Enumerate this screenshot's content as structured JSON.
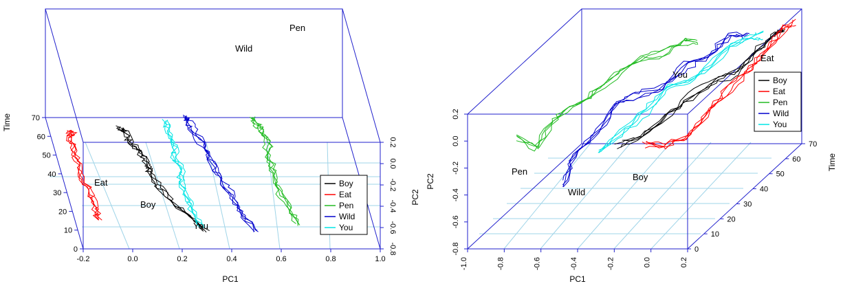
{
  "colors": {
    "box": "#1f1fcc",
    "grid": "#9fd4e8",
    "Boy": "#000000",
    "Eat": "#ff0000",
    "Pen": "#22bb22",
    "Wild": "#0000cc",
    "You": "#00e5e5"
  },
  "chart_data": [
    {
      "type": "line",
      "subtype": "3d-scatterplot-trajectories",
      "title": "",
      "xlabel": "PC1",
      "ylabel": "PC2",
      "zlabel": "Time",
      "x_ticks": [
        "-0.2",
        "0.0",
        "0.2",
        "0.4",
        "0.6",
        "0.8",
        "1.0"
      ],
      "y_ticks": [
        "-0.8",
        "-0.6",
        "-0.4",
        "-0.2",
        "0.0",
        "0.2"
      ],
      "z_ticks": [
        "0",
        "10",
        "20",
        "30",
        "40",
        "50",
        "60",
        "70"
      ],
      "xlim": [
        -0.2,
        1.0
      ],
      "ylim": [
        -0.8,
        0.2
      ],
      "zlim": [
        0,
        70
      ],
      "legend": {
        "placement": "bottom-right",
        "entries": [
          "Boy",
          "Eat",
          "Pen",
          "Wild",
          "You"
        ]
      },
      "word_labels": [
        {
          "text": "Eat",
          "series": "Eat"
        },
        {
          "text": "Boy",
          "series": "Boy"
        },
        {
          "text": "You",
          "series": "You"
        },
        {
          "text": "Wild",
          "series": "Wild"
        },
        {
          "text": "Pen",
          "series": "Pen"
        }
      ],
      "series": [
        {
          "name": "Eat",
          "points": [
            [
              -0.05,
              -0.05,
              5
            ],
            [
              -0.06,
              -0.1,
              15
            ],
            [
              -0.08,
              -0.15,
              25
            ],
            [
              -0.1,
              -0.2,
              35
            ],
            [
              -0.12,
              -0.25,
              45
            ],
            [
              -0.13,
              -0.3,
              55
            ],
            [
              -0.15,
              -0.35,
              62
            ],
            [
              -0.15,
              -0.45,
              66
            ],
            [
              -0.17,
              -0.55,
              70
            ]
          ]
        },
        {
          "name": "Boy",
          "points": [
            [
              0.35,
              -0.35,
              3
            ],
            [
              0.3,
              -0.2,
              10
            ],
            [
              0.25,
              -0.1,
              18
            ],
            [
              0.22,
              0.0,
              25
            ],
            [
              0.2,
              0.05,
              33
            ],
            [
              0.18,
              0.0,
              40
            ],
            [
              0.15,
              -0.1,
              48
            ],
            [
              0.12,
              -0.15,
              55
            ],
            [
              0.1,
              -0.2,
              62
            ],
            [
              0.06,
              -0.3,
              68
            ]
          ]
        },
        {
          "name": "You",
          "points": [
            [
              0.35,
              -0.2,
              3
            ],
            [
              0.34,
              -0.05,
              10
            ],
            [
              0.33,
              0.05,
              18
            ],
            [
              0.32,
              0.1,
              26
            ],
            [
              0.32,
              0.08,
              34
            ],
            [
              0.3,
              0.0,
              42
            ],
            [
              0.3,
              -0.05,
              50
            ],
            [
              0.28,
              -0.1,
              58
            ],
            [
              0.27,
              -0.15,
              65
            ],
            [
              0.26,
              -0.2,
              70
            ]
          ]
        },
        {
          "name": "Wild",
          "points": [
            [
              0.55,
              -0.35,
              3
            ],
            [
              0.52,
              -0.2,
              10
            ],
            [
              0.5,
              -0.15,
              18
            ],
            [
              0.48,
              -0.1,
              26
            ],
            [
              0.46,
              -0.05,
              34
            ],
            [
              0.44,
              0.0,
              42
            ],
            [
              0.42,
              0.05,
              50
            ],
            [
              0.4,
              0.1,
              58
            ],
            [
              0.38,
              0.05,
              65
            ],
            [
              0.36,
              0.0,
              70
            ]
          ]
        },
        {
          "name": "Pen",
          "points": [
            [
              0.75,
              -0.1,
              3
            ],
            [
              0.73,
              0.0,
              12
            ],
            [
              0.71,
              0.05,
              22
            ],
            [
              0.7,
              0.1,
              32
            ],
            [
              0.69,
              0.1,
              42
            ],
            [
              0.68,
              0.05,
              52
            ],
            [
              0.66,
              0.0,
              60
            ],
            [
              0.64,
              -0.05,
              66
            ],
            [
              0.62,
              -0.1,
              70
            ]
          ]
        }
      ]
    },
    {
      "type": "line",
      "subtype": "3d-scatterplot-trajectories",
      "title": "",
      "xlabel": "PC1",
      "ylabel": "PC2",
      "zlabel": "Time",
      "x_ticks": [
        "-1.0",
        "-0.8",
        "-0.6",
        "-0.4",
        "-0.2",
        "0.0",
        "0.2"
      ],
      "y_ticks": [
        "-0.8",
        "-0.6",
        "-0.4",
        "-0.2",
        "0.0",
        "0.2"
      ],
      "z_ticks": [
        "0",
        "10",
        "20",
        "30",
        "40",
        "50",
        "60",
        "70"
      ],
      "xlim": [
        -1.0,
        0.2
      ],
      "ylim": [
        -0.8,
        0.2
      ],
      "zlim": [
        0,
        70
      ],
      "legend": {
        "placement": "top-right",
        "entries": [
          "Boy",
          "Eat",
          "Pen",
          "Wild",
          "You"
        ]
      },
      "word_labels": [
        {
          "text": "Eat",
          "series": "Eat"
        },
        {
          "text": "You",
          "series": "You"
        },
        {
          "text": "Pen",
          "series": "Pen"
        },
        {
          "text": "Wild",
          "series": "Wild"
        },
        {
          "text": "Boy",
          "series": "Boy"
        }
      ],
      "series": [
        {
          "name": "Pen",
          "points": [
            [
              -0.75,
              0.0,
              2
            ],
            [
              -0.7,
              -0.15,
              8
            ],
            [
              -0.68,
              -0.05,
              15
            ],
            [
              -0.65,
              0.0,
              22
            ],
            [
              -0.6,
              0.0,
              30
            ],
            [
              -0.55,
              0.05,
              40
            ],
            [
              -0.5,
              0.05,
              50
            ],
            [
              -0.45,
              0.0,
              58
            ],
            [
              -0.4,
              0.0,
              66
            ],
            [
              -0.38,
              -0.05,
              70
            ]
          ]
        },
        {
          "name": "Wild",
          "points": [
            [
              -0.5,
              -0.35,
              2
            ],
            [
              -0.48,
              -0.2,
              8
            ],
            [
              -0.42,
              -0.1,
              15
            ],
            [
              -0.38,
              0.05,
              22
            ],
            [
              -0.35,
              0.0,
              30
            ],
            [
              -0.3,
              -0.05,
              40
            ],
            [
              -0.25,
              0.0,
              50
            ],
            [
              -0.2,
              0.0,
              58
            ],
            [
              -0.15,
              0.05,
              66
            ],
            [
              -0.1,
              0.0,
              70
            ]
          ]
        },
        {
          "name": "You",
          "points": [
            [
              -0.3,
              -0.1,
              2
            ],
            [
              -0.25,
              -0.05,
              10
            ],
            [
              -0.2,
              0.0,
              20
            ],
            [
              -0.18,
              0.05,
              30
            ],
            [
              -0.15,
              0.0,
              40
            ],
            [
              -0.12,
              0.0,
              50
            ],
            [
              -0.08,
              0.05,
              58
            ],
            [
              -0.05,
              0.05,
              66
            ],
            [
              -0.02,
              0.0,
              70
            ]
          ]
        },
        {
          "name": "Boy",
          "points": [
            [
              -0.2,
              -0.05,
              2
            ],
            [
              -0.15,
              -0.1,
              10
            ],
            [
              -0.1,
              -0.05,
              20
            ],
            [
              -0.05,
              0.0,
              30
            ],
            [
              0.0,
              0.0,
              40
            ],
            [
              0.03,
              -0.05,
              50
            ],
            [
              0.05,
              0.0,
              58
            ],
            [
              0.08,
              0.05,
              66
            ],
            [
              0.1,
              0.05,
              70
            ]
          ]
        },
        {
          "name": "Eat",
          "points": [
            [
              -0.05,
              -0.05,
              2
            ],
            [
              -0.02,
              -0.15,
              10
            ],
            [
              0.02,
              -0.2,
              20
            ],
            [
              0.05,
              -0.1,
              30
            ],
            [
              0.08,
              -0.05,
              40
            ],
            [
              0.1,
              0.0,
              50
            ],
            [
              0.12,
              0.05,
              58
            ],
            [
              0.14,
              0.1,
              66
            ],
            [
              0.15,
              0.1,
              70
            ]
          ]
        }
      ]
    }
  ]
}
